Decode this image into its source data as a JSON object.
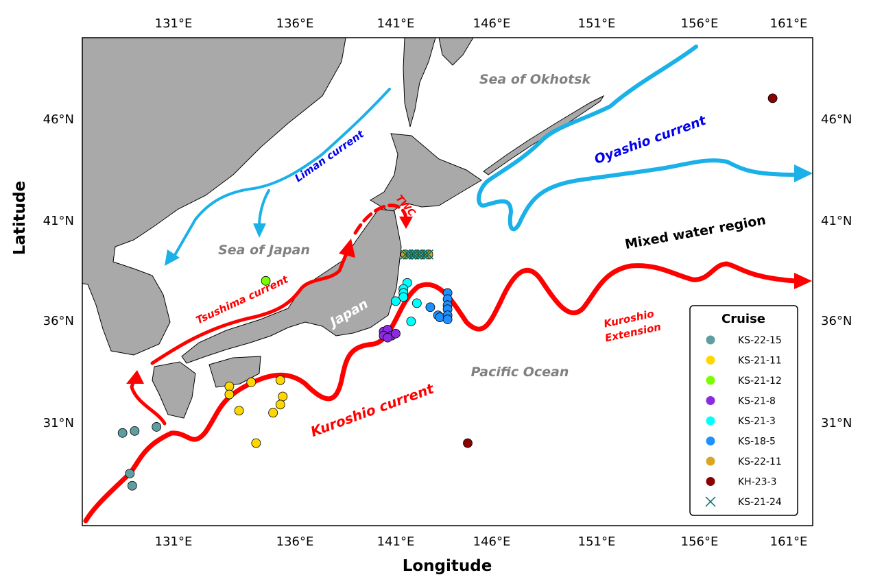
{
  "axes": {
    "xlabel": "Longitude",
    "ylabel": "Latitude",
    "lon_ticks": [
      "131°E",
      "136°E",
      "141°E",
      "146°E",
      "151°E",
      "156°E",
      "161°E"
    ],
    "lat_ticks": [
      "46°N",
      "41°N",
      "36°N",
      "31°N"
    ]
  },
  "labels": {
    "sea_okhotsk": "Sea of Okhotsk",
    "sea_japan": "Sea of Japan",
    "japan": "Japan",
    "pacific": "Pacific Ocean",
    "mixed": "Mixed water region",
    "liman": "Liman current",
    "oyashio": "Oyashio current",
    "tsushima": "Tsushima current",
    "twc": "TWC",
    "kuroshio": "Kuroshio current",
    "kuroshio_ext_1": "Kuroshio",
    "kuroshio_ext_2": "Extension"
  },
  "colors": {
    "land": "#a9a9a9",
    "warm_current": "#ff0000",
    "cold_current": "#1ab0e8"
  },
  "chart_data": {
    "type": "scatter",
    "xlabel": "Longitude",
    "ylabel": "Latitude",
    "xlim": [
      126.5,
      161
    ],
    "ylim": [
      25.3,
      49.3
    ],
    "legend": {
      "title": "Cruise",
      "placement": "bottom-right"
    },
    "series": [
      {
        "name": "KS-22-15",
        "color": "#5f9ea0",
        "marker": "o",
        "points": [
          [
            128.9,
            30.5
          ],
          [
            129.4,
            30.6
          ],
          [
            130.3,
            30.8
          ],
          [
            129.2,
            28.5
          ],
          [
            129.3,
            27.9
          ]
        ]
      },
      {
        "name": "KS-21-11",
        "color": "#ffd700",
        "marker": "o",
        "points": [
          [
            133.3,
            32.8
          ],
          [
            133.3,
            32.4
          ],
          [
            134.2,
            33.0
          ],
          [
            135.4,
            33.1
          ],
          [
            133.7,
            31.6
          ],
          [
            135.5,
            32.3
          ],
          [
            135.4,
            31.9
          ],
          [
            135.1,
            31.5
          ],
          [
            134.4,
            30.0
          ]
        ]
      },
      {
        "name": "KS-21-12",
        "color": "#7cfc00",
        "marker": "o",
        "points": [
          [
            134.8,
            38.0
          ]
        ]
      },
      {
        "name": "KS-21-8",
        "color": "#8a2be2",
        "marker": "o",
        "points": [
          [
            140.4,
            35.5
          ],
          [
            140.6,
            35.6
          ],
          [
            140.8,
            35.3
          ],
          [
            140.4,
            35.3
          ],
          [
            141.0,
            35.4
          ],
          [
            140.6,
            35.2
          ]
        ]
      },
      {
        "name": "KS-21-3",
        "color": "#00ffff",
        "marker": "o",
        "points": [
          [
            141.6,
            37.9
          ],
          [
            141.4,
            37.6
          ],
          [
            141.4,
            37.4
          ],
          [
            141.4,
            37.2
          ],
          [
            141.0,
            37.0
          ],
          [
            142.1,
            36.9
          ],
          [
            141.8,
            36.0
          ]
        ]
      },
      {
        "name": "KS-18-5",
        "color": "#1e90ff",
        "marker": "o",
        "points": [
          [
            142.8,
            36.7
          ],
          [
            143.2,
            36.3
          ],
          [
            143.3,
            36.2
          ],
          [
            143.7,
            37.4
          ],
          [
            143.7,
            37.1
          ],
          [
            143.7,
            36.8
          ],
          [
            143.7,
            36.6
          ],
          [
            143.7,
            36.3
          ],
          [
            143.7,
            36.1
          ]
        ]
      },
      {
        "name": "KS-22-11",
        "color": "#daa520",
        "marker": "o",
        "points": [
          [
            141.5,
            39.3
          ],
          [
            141.8,
            39.3
          ],
          [
            142.1,
            39.3
          ],
          [
            142.4,
            39.3
          ],
          [
            142.7,
            39.3
          ]
        ]
      },
      {
        "name": "KH-23-3",
        "color": "#8b0000",
        "marker": "o",
        "points": [
          [
            160.1,
            47.0
          ],
          [
            144.75,
            30.0
          ]
        ]
      },
      {
        "name": "KS-21-24",
        "color": "#006d6d",
        "marker": "x",
        "points": [
          [
            141.5,
            39.3
          ],
          [
            141.65,
            39.3
          ],
          [
            141.8,
            39.3
          ],
          [
            141.95,
            39.3
          ],
          [
            142.1,
            39.3
          ],
          [
            142.25,
            39.3
          ],
          [
            142.4,
            39.3
          ],
          [
            142.55,
            39.3
          ],
          [
            142.7,
            39.3
          ]
        ]
      }
    ]
  }
}
